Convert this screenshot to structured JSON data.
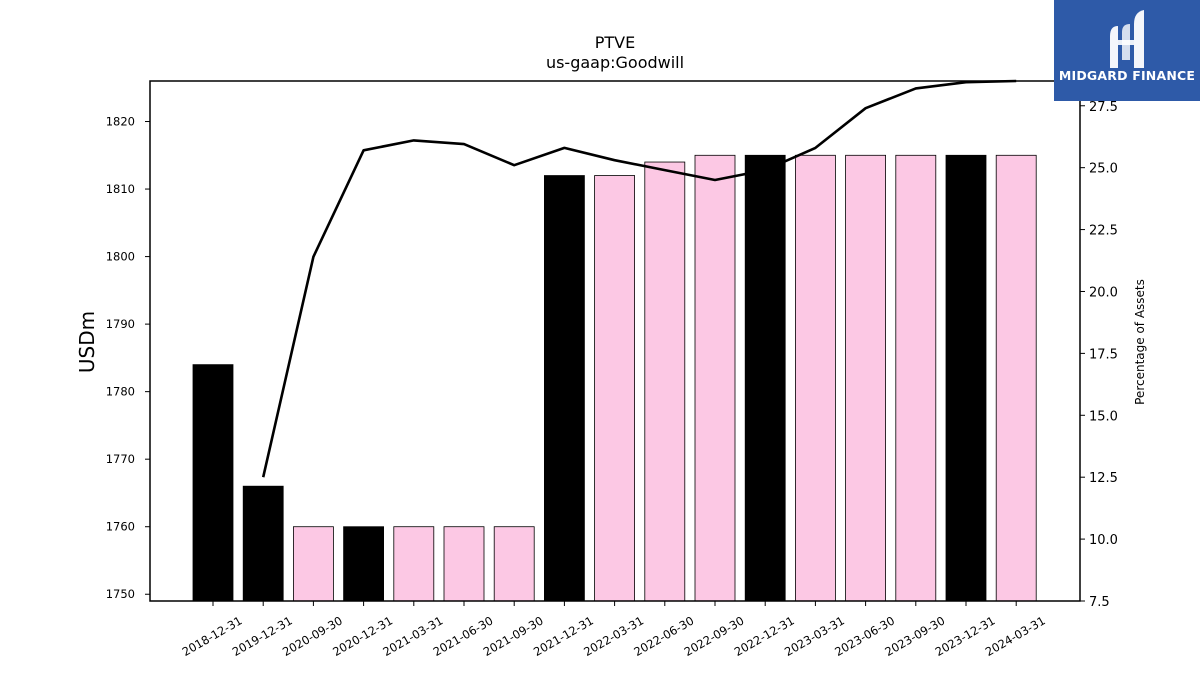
{
  "chart_data": {
    "type": "bar",
    "title": "PTVE",
    "subtitle": "us-gaap:Goodwill",
    "ylabel": "USDm",
    "y2label": "Percentage of Assets",
    "ylim": [
      1749,
      1826
    ],
    "y2lim": [
      7.5,
      28.5
    ],
    "yticks": [
      1750,
      1760,
      1770,
      1780,
      1790,
      1800,
      1810,
      1820
    ],
    "y2ticks": [
      "7.5",
      "10.0",
      "12.5",
      "15.0",
      "17.5",
      "20.0",
      "22.5",
      "25.0",
      "27.5"
    ],
    "categories": [
      "2018-12-31",
      "2019-12-31",
      "2020-09-30",
      "2020-12-31",
      "2021-03-31",
      "2021-06-30",
      "2021-09-30",
      "2021-12-31",
      "2022-03-31",
      "2022-06-30",
      "2022-09-30",
      "2022-12-31",
      "2023-03-31",
      "2023-06-30",
      "2023-09-30",
      "2023-12-31",
      "2024-03-31"
    ],
    "series": [
      {
        "type": "bar",
        "values": [
          1784,
          1766,
          1760,
          1760,
          1760,
          1760,
          1760,
          1812,
          1812,
          1814,
          1815,
          1815,
          1815,
          1815,
          1815,
          1815,
          1815
        ],
        "annual": [
          true,
          true,
          false,
          true,
          false,
          false,
          false,
          true,
          false,
          false,
          false,
          true,
          false,
          false,
          false,
          true,
          false
        ]
      },
      {
        "type": "line",
        "axis": "right",
        "values": [
          null,
          12.5,
          21.4,
          25.7,
          26.1,
          25.95,
          25.1,
          25.8,
          25.3,
          24.9,
          24.5,
          24.9,
          25.8,
          27.4,
          28.2,
          28.45,
          28.5
        ]
      }
    ],
    "colors": {
      "annual_bar": "#000000",
      "quarter_bar": "#fcc8e4",
      "bar_edge": "#000000",
      "line": "#000000"
    }
  },
  "logo": {
    "text": "MIDGARD FINANCE",
    "background": "#2e5aa8"
  }
}
